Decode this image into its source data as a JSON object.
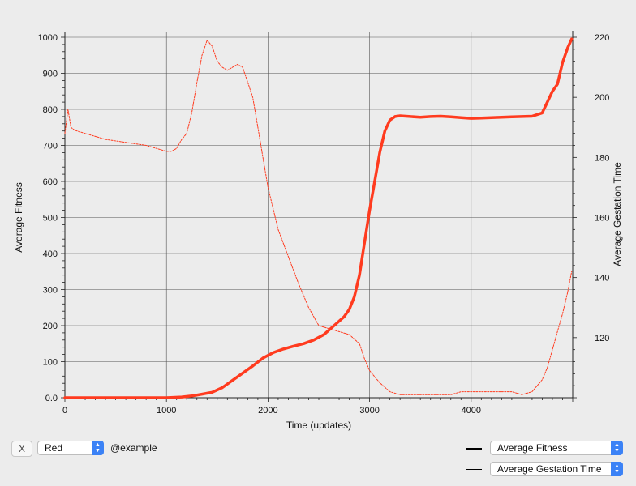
{
  "chart_data": {
    "type": "line",
    "xlabel": "Time (updates)",
    "ylabel_left": "Average Fitness",
    "ylabel_right": "Average Gestation Time",
    "xlim": [
      0,
      5000
    ],
    "ylim_left": [
      0,
      1000
    ],
    "ylim_right": [
      100,
      220
    ],
    "x_ticks": [
      "0",
      "1000",
      "2000",
      "3000",
      "4000"
    ],
    "y_ticks_left": [
      "0.0",
      "100",
      "200",
      "300",
      "400",
      "500",
      "600",
      "700",
      "800",
      "900",
      "1000"
    ],
    "y_ticks_right": [
      "120",
      "140",
      "160",
      "180",
      "200",
      "220"
    ],
    "grid": true,
    "series": [
      {
        "name": "Average Fitness",
        "axis": "left",
        "color": "#ff3b1f",
        "style": "thick",
        "x": [
          0,
          500,
          1000,
          1150,
          1250,
          1350,
          1450,
          1550,
          1650,
          1750,
          1850,
          1950,
          2050,
          2150,
          2250,
          2350,
          2450,
          2550,
          2650,
          2750,
          2800,
          2850,
          2900,
          2950,
          3000,
          3050,
          3100,
          3150,
          3200,
          3250,
          3300,
          3400,
          3500,
          3600,
          3700,
          3800,
          3900,
          4000,
          4100,
          4200,
          4300,
          4400,
          4500,
          4600,
          4700,
          4750,
          4800,
          4850,
          4900,
          4950,
          4990
        ],
        "y": [
          0,
          0,
          0,
          2,
          5,
          10,
          15,
          28,
          48,
          68,
          88,
          110,
          125,
          135,
          143,
          150,
          160,
          175,
          200,
          225,
          245,
          280,
          340,
          430,
          520,
          600,
          680,
          740,
          770,
          780,
          782,
          780,
          778,
          780,
          781,
          779,
          777,
          775,
          776,
          777,
          778,
          779,
          780,
          781,
          790,
          820,
          850,
          870,
          930,
          970,
          995
        ]
      },
      {
        "name": "Average Gestation Time",
        "axis": "right",
        "color": "#ff3b1f",
        "style": "thin",
        "x": [
          0,
          30,
          60,
          100,
          200,
          400,
          600,
          800,
          900,
          1000,
          1050,
          1100,
          1150,
          1200,
          1250,
          1300,
          1350,
          1400,
          1450,
          1500,
          1550,
          1600,
          1650,
          1700,
          1750,
          1800,
          1850,
          1900,
          1950,
          2000,
          2100,
          2200,
          2300,
          2400,
          2500,
          2600,
          2700,
          2800,
          2900,
          2950,
          3000,
          3100,
          3200,
          3300,
          3400,
          3500,
          3600,
          3700,
          3800,
          3900,
          4000,
          4100,
          4200,
          4300,
          4400,
          4500,
          4600,
          4650,
          4700,
          4750,
          4800,
          4850,
          4900,
          4950,
          4990
        ],
        "y": [
          188,
          196,
          190,
          189,
          188,
          186,
          185,
          184,
          183,
          182,
          182,
          183,
          186,
          188,
          195,
          205,
          214,
          219,
          217,
          212,
          210,
          209,
          210,
          211,
          210,
          205,
          200,
          190,
          180,
          170,
          156,
          147,
          138,
          130,
          124,
          123,
          122,
          121,
          118,
          113,
          109,
          105,
          102,
          101,
          101,
          101,
          101,
          101,
          101,
          102,
          102,
          102,
          102,
          102,
          102,
          101,
          102,
          104,
          106,
          110,
          116,
          122,
          128,
          135,
          142
        ]
      }
    ]
  },
  "controls": {
    "close_label": "X",
    "color_value": "Red",
    "source_label": "@example",
    "legend_primary_value": "Average Fitness",
    "legend_secondary_value": "Average Gestation Time"
  },
  "colors": {
    "series": "#ff3b1f",
    "popup_stepper": "#3b82f6",
    "background": "#ececec"
  }
}
